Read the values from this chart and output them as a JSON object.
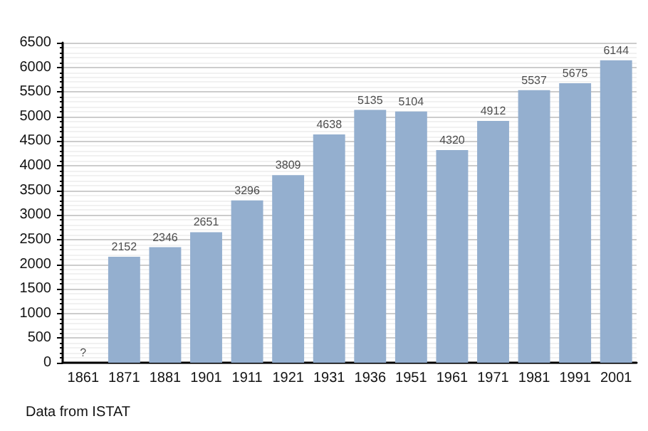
{
  "chart_data": {
    "type": "bar",
    "categories": [
      "1861",
      "1871",
      "1881",
      "1901",
      "1911",
      "1921",
      "1931",
      "1936",
      "1951",
      "1961",
      "1971",
      "1981",
      "1991",
      "2001"
    ],
    "values": [
      null,
      2152,
      2346,
      2651,
      3296,
      3809,
      4638,
      5135,
      5104,
      4320,
      4912,
      5537,
      5675,
      6144
    ],
    "value_labels": [
      "?",
      "2152",
      "2346",
      "2651",
      "3296",
      "3809",
      "4638",
      "5135",
      "5104",
      "4320",
      "4912",
      "5537",
      "5675",
      "6144"
    ],
    "color": "#94afcf",
    "ylim": [
      0,
      6500
    ],
    "yticks": [
      0,
      500,
      1000,
      1500,
      2000,
      2500,
      3000,
      3500,
      4000,
      4500,
      5000,
      5500,
      6000,
      6500
    ],
    "grid": "y",
    "annotations": [
      "Data from ISTAT"
    ]
  }
}
